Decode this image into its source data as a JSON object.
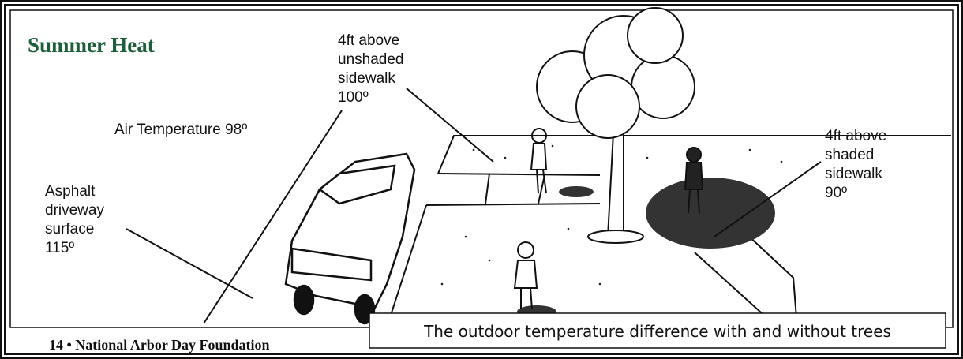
{
  "title": "Summer Heat",
  "labels": [
    {
      "lines": [
        "4ft above",
        "unshaded",
        "sidewalk",
        "100º"
      ]
    },
    {
      "lines": [
        "Air Temperature 98º"
      ]
    },
    {
      "lines": [
        "Asphalt",
        "driveway",
        "surface",
        "115º"
      ]
    },
    {
      "lines": [
        "4ft above",
        "shaded",
        "sidewalk",
        "90º"
      ]
    }
  ],
  "footer": "14 • National Arbor Day Foundation",
  "caption": "The outdoor temperature difference with and without trees"
}
